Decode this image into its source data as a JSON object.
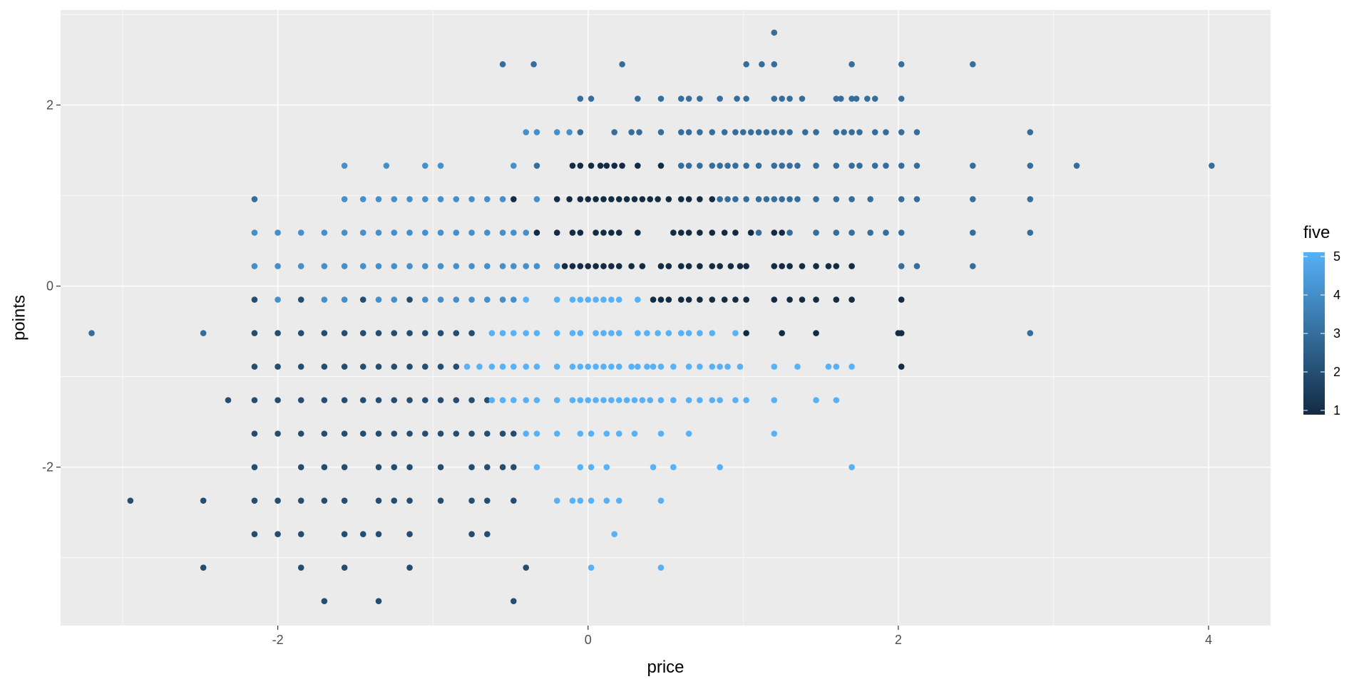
{
  "chart_data": {
    "type": "scatter",
    "title": "",
    "xlabel": "price",
    "ylabel": "points",
    "xlim": [
      -3.4,
      4.4
    ],
    "ylim": [
      -3.75,
      3.05
    ],
    "x_ticks": [
      -2,
      0,
      2,
      4
    ],
    "x_tick_labels": [
      "-2",
      "0",
      "2",
      "4"
    ],
    "y_ticks": [
      -2,
      0,
      2
    ],
    "y_tick_labels": [
      "-2",
      "0",
      "2"
    ],
    "grid": true,
    "panel_background": "#ebebeb",
    "grid_color": "#ffffff",
    "legend": {
      "title": "five",
      "position": "right",
      "type": "colorbar",
      "min": 1,
      "max": 5,
      "breaks": [
        1,
        2,
        3,
        4,
        5
      ],
      "break_labels": [
        "1",
        "2",
        "3",
        "4",
        "5"
      ],
      "low_color": "#132b43",
      "high_color": "#56b1f7"
    },
    "y_levels": [
      2.8,
      2.45,
      2.07,
      1.7,
      1.33,
      0.96,
      0.59,
      0.22,
      -0.15,
      -0.52,
      -0.89,
      -1.26,
      -1.63,
      -2.0,
      -2.37,
      -2.74,
      -3.11,
      -3.48
    ],
    "point_rows": [
      {
        "y": 2.8,
        "five": 3,
        "x": [
          1.2
        ]
      },
      {
        "y": 2.45,
        "five": 3,
        "x": [
          -0.55,
          -0.35,
          0.22,
          1.02,
          1.12,
          1.2,
          1.7,
          2.02,
          2.48
        ]
      },
      {
        "y": 2.07,
        "five": 3,
        "x": [
          -0.05,
          0.02,
          0.32,
          0.47,
          0.6,
          0.65,
          0.72,
          0.85,
          0.96,
          1.02,
          1.2,
          1.25,
          1.3,
          1.38,
          1.6,
          1.63,
          1.7,
          1.73,
          1.8,
          1.85,
          2.02
        ]
      },
      {
        "y": 1.7,
        "five": 4,
        "x": [
          -0.4,
          -0.33,
          -0.2,
          -0.12
        ]
      },
      {
        "y": 1.7,
        "five": 3,
        "x": [
          -0.05,
          0.17,
          0.28,
          0.33,
          0.47,
          0.6,
          0.65,
          0.72,
          0.8,
          0.88,
          0.95,
          1.0,
          1.05,
          1.1,
          1.15,
          1.2,
          1.25,
          1.3,
          1.4,
          1.47,
          1.6,
          1.65,
          1.7,
          1.75,
          1.85,
          1.92,
          2.02,
          2.12,
          2.85
        ]
      },
      {
        "y": 1.33,
        "five": 4,
        "x": [
          -1.57,
          -1.3,
          -1.05,
          -0.95,
          -0.48
        ]
      },
      {
        "y": 1.33,
        "five": 3,
        "x": [
          -0.33,
          0.6,
          0.65,
          0.72,
          0.8,
          0.85,
          0.9,
          0.95,
          1.02,
          1.1,
          1.2,
          1.25,
          1.3,
          1.35,
          1.47,
          1.6,
          1.7,
          1.75,
          1.85,
          1.92,
          2.02,
          2.12,
          2.48,
          2.85,
          3.15,
          4.02
        ]
      },
      {
        "y": 1.33,
        "five": 1,
        "x": [
          -0.1,
          -0.05,
          0.02,
          0.08,
          0.12,
          0.17,
          0.22,
          0.32,
          0.47
        ]
      },
      {
        "y": 0.96,
        "five": 3,
        "x": [
          -2.15
        ]
      },
      {
        "y": 0.96,
        "five": 4,
        "x": [
          -1.57,
          -1.45,
          -1.35,
          -1.25,
          -1.15,
          -1.05,
          -0.95,
          -0.85,
          -0.75,
          -0.65,
          -0.55,
          -0.33
        ]
      },
      {
        "y": 0.96,
        "five": 1,
        "x": [
          -0.48,
          -0.2,
          -0.12,
          -0.05,
          0.0,
          0.05,
          0.1,
          0.15,
          0.2,
          0.25,
          0.3,
          0.35,
          0.4,
          0.45,
          0.52,
          0.6,
          0.65,
          0.72,
          0.8
        ]
      },
      {
        "y": 0.96,
        "five": 3,
        "x": [
          0.85,
          0.9,
          0.95,
          1.02,
          1.1,
          1.15,
          1.2,
          1.25,
          1.3,
          1.35,
          1.47,
          1.6,
          1.7,
          1.82,
          2.02,
          2.12,
          2.48,
          2.85
        ]
      },
      {
        "y": 0.59,
        "five": 4,
        "x": [
          -2.15,
          -2.0,
          -1.85,
          -1.7,
          -1.57,
          -1.45,
          -1.35,
          -1.25,
          -1.15,
          -1.05,
          -0.95,
          -0.85,
          -0.75,
          -0.65,
          -0.55,
          -0.48,
          -0.4
        ]
      },
      {
        "y": 0.59,
        "five": 1,
        "x": [
          -0.33,
          -0.2,
          -0.1,
          -0.05,
          0.05,
          0.1,
          0.15,
          0.2,
          0.32,
          0.55,
          0.6,
          0.65,
          0.72,
          0.8,
          0.88,
          0.95,
          1.05,
          1.2,
          1.25
        ]
      },
      {
        "y": 0.59,
        "five": 3,
        "x": [
          1.1,
          1.3,
          1.47,
          1.6,
          1.7,
          1.82,
          1.92,
          2.02,
          2.48,
          2.85
        ]
      },
      {
        "y": 0.22,
        "five": 4,
        "x": [
          -2.15,
          -2.0,
          -1.85,
          -1.7,
          -1.57,
          -1.45,
          -1.35,
          -1.25,
          -1.15,
          -1.05,
          -0.95,
          -0.85,
          -0.75,
          -0.65,
          -0.55,
          -0.48,
          -0.4,
          -0.33,
          -0.2
        ]
      },
      {
        "y": 0.22,
        "five": 1,
        "x": [
          -0.15,
          -0.1,
          -0.05,
          0.0,
          0.05,
          0.1,
          0.15,
          0.2,
          0.28,
          0.35,
          0.47,
          0.52,
          0.6,
          0.65,
          0.72,
          0.8,
          0.85,
          0.92,
          0.98,
          1.02,
          1.2,
          1.25,
          1.3,
          1.38,
          1.47,
          1.55,
          1.6,
          1.7
        ]
      },
      {
        "y": 0.22,
        "five": 3,
        "x": [
          2.02,
          2.12,
          2.48
        ]
      },
      {
        "y": -0.15,
        "five": 2,
        "x": [
          -2.15,
          -1.85,
          -1.45,
          -1.15
        ]
      },
      {
        "y": -0.15,
        "five": 4,
        "x": [
          -2.0,
          -1.7,
          -1.57,
          -1.35,
          -1.25,
          -1.05,
          -0.95,
          -0.85,
          -0.75,
          -0.65,
          -0.55,
          -0.48
        ]
      },
      {
        "y": -0.15,
        "five": 5,
        "x": [
          -0.4,
          -0.2,
          -0.1,
          -0.05,
          0.0,
          0.05,
          0.1,
          0.15,
          0.2,
          0.32
        ]
      },
      {
        "y": -0.15,
        "five": 1,
        "x": [
          0.42,
          0.47,
          0.52,
          0.6,
          0.65,
          0.72,
          0.8,
          0.88,
          0.95,
          1.02,
          1.2,
          1.3,
          1.38,
          1.47,
          1.6,
          1.7,
          2.02
        ]
      },
      {
        "y": -0.52,
        "five": 3,
        "x": [
          -3.2,
          -2.48,
          2.85
        ]
      },
      {
        "y": -0.52,
        "five": 2,
        "x": [
          -2.15,
          -2.0,
          -1.85,
          -1.7,
          -1.57,
          -1.45,
          -1.35,
          -1.25,
          -1.15,
          -1.05,
          -0.95,
          -0.85,
          -0.75
        ]
      },
      {
        "y": -0.52,
        "five": 5,
        "x": [
          -0.62,
          -0.55,
          -0.48,
          -0.4,
          -0.33,
          -0.2,
          -0.1,
          -0.05,
          0.05,
          0.1,
          0.15,
          0.2,
          0.32,
          0.38,
          0.45,
          0.52,
          0.6,
          0.65,
          0.72,
          0.8,
          0.95
        ]
      },
      {
        "y": -0.52,
        "five": 1,
        "x": [
          1.02,
          1.25,
          1.47,
          2.0,
          2.02
        ]
      },
      {
        "y": -0.89,
        "five": 2,
        "x": [
          -2.15,
          -2.0,
          -1.85,
          -1.7,
          -1.57,
          -1.45,
          -1.35,
          -1.25,
          -1.15,
          -1.05,
          -0.95,
          -0.85
        ]
      },
      {
        "y": -0.89,
        "five": 5,
        "x": [
          -0.78,
          -0.7,
          -0.62,
          -0.55,
          -0.48,
          -0.4,
          -0.33,
          -0.2,
          -0.1,
          -0.05,
          0.0,
          0.05,
          0.1,
          0.15,
          0.2,
          0.28,
          0.32,
          0.38,
          0.42,
          0.47,
          0.55,
          0.65,
          0.72,
          0.8,
          0.85,
          0.9,
          0.98,
          1.2,
          1.35,
          1.55,
          1.6,
          1.7
        ]
      },
      {
        "y": -0.89,
        "five": 1,
        "x": [
          2.02
        ]
      },
      {
        "y": -1.26,
        "five": 2,
        "x": [
          -2.32,
          -2.15,
          -2.0,
          -1.85,
          -1.7,
          -1.57,
          -1.45,
          -1.35,
          -1.25,
          -1.15,
          -1.05,
          -0.95,
          -0.85,
          -0.75,
          -0.65
        ]
      },
      {
        "y": -1.26,
        "five": 5,
        "x": [
          -0.62,
          -0.55,
          -0.48,
          -0.4,
          -0.33,
          -0.2,
          -0.1,
          -0.05,
          0.0,
          0.05,
          0.1,
          0.15,
          0.2,
          0.25,
          0.3,
          0.35,
          0.4,
          0.47,
          0.55,
          0.65,
          0.72,
          0.8,
          0.85,
          0.95,
          1.02,
          1.2,
          1.47,
          1.6
        ]
      },
      {
        "y": -1.63,
        "five": 2,
        "x": [
          -2.15,
          -2.0,
          -1.85,
          -1.7,
          -1.57,
          -1.45,
          -1.35,
          -1.25,
          -1.15,
          -1.05,
          -0.95,
          -0.85,
          -0.75,
          -0.65,
          -0.55,
          -0.48
        ]
      },
      {
        "y": -1.63,
        "five": 5,
        "x": [
          -0.4,
          -0.33,
          -0.2,
          -0.05,
          0.02,
          0.12,
          0.2,
          0.3,
          0.47,
          0.65,
          1.2
        ]
      },
      {
        "y": -2.0,
        "five": 2,
        "x": [
          -2.15,
          -1.85,
          -1.7,
          -1.57,
          -1.35,
          -1.25,
          -1.15,
          -0.95,
          -0.75,
          -0.65,
          -0.55,
          -0.48
        ]
      },
      {
        "y": -2.0,
        "five": 5,
        "x": [
          -0.33,
          -0.05,
          0.02,
          0.12,
          0.42,
          0.55,
          0.85,
          1.7
        ]
      },
      {
        "y": -2.37,
        "five": 2,
        "x": [
          -2.95,
          -2.48,
          -2.15,
          -2.0,
          -1.85,
          -1.7,
          -1.57,
          -1.35,
          -1.25,
          -1.15,
          -0.95,
          -0.75,
          -0.65,
          -0.48
        ]
      },
      {
        "y": -2.37,
        "five": 5,
        "x": [
          -0.2,
          -0.1,
          -0.05,
          0.02,
          0.12,
          0.2,
          0.47
        ]
      },
      {
        "y": -2.74,
        "five": 2,
        "x": [
          -2.15,
          -2.0,
          -1.85,
          -1.57,
          -1.45,
          -1.35,
          -1.15,
          -0.75,
          -0.65
        ]
      },
      {
        "y": -2.74,
        "five": 5,
        "x": [
          0.17
        ]
      },
      {
        "y": -3.11,
        "five": 2,
        "x": [
          -2.48,
          -1.85,
          -1.57,
          -1.15,
          -0.4
        ]
      },
      {
        "y": -3.11,
        "five": 5,
        "x": [
          0.02,
          0.47
        ]
      },
      {
        "y": -3.48,
        "five": 2,
        "x": [
          -1.7,
          -1.35,
          -0.48
        ]
      }
    ]
  }
}
